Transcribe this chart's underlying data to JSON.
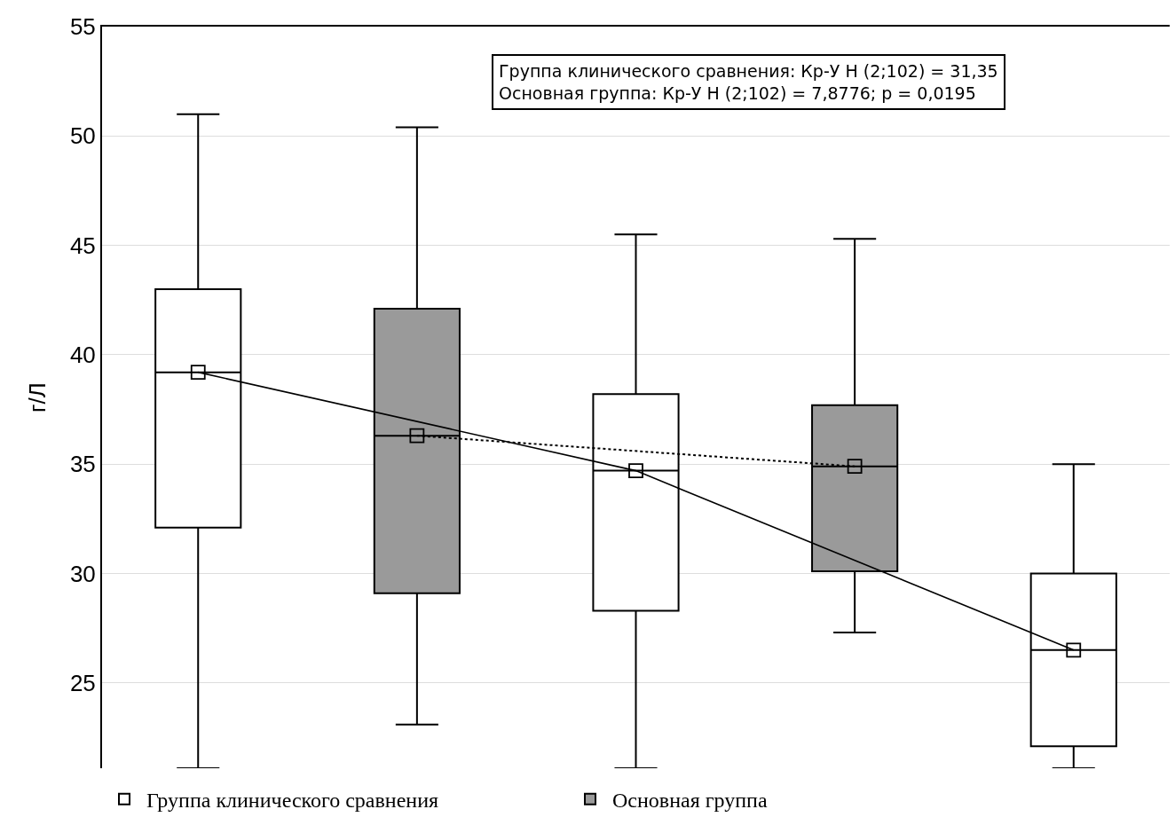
{
  "chart_data": {
    "type": "box",
    "ylabel": "г/Л",
    "annotations": [
      "Группа клинического сравнения: Кр-У H (2;102) = 31,35",
      "Основная группа: Кр-У H (2;102) = 7,8776; p = 0,0195"
    ],
    "categories": [
      null,
      null,
      null,
      null,
      null
    ],
    "series": [
      {
        "name": "Группа клинического сравнения",
        "color": "#ffffff",
        "boxes": [
          {
            "low": 21.1,
            "q1": 32.1,
            "median": 39.2,
            "q3": 43.0,
            "high": 51.0
          },
          null,
          {
            "low": 21.1,
            "q1": 28.3,
            "median": 34.7,
            "q3": 38.2,
            "high": 45.5
          },
          null,
          {
            "low": 21.1,
            "q1": 22.1,
            "median": 26.5,
            "q3": 30.0,
            "high": 35.0
          }
        ]
      },
      {
        "name": "Основная группа",
        "color": "#9a9a9a",
        "boxes": [
          null,
          {
            "low": 23.1,
            "q1": 29.1,
            "median": 36.3,
            "q3": 42.1,
            "high": 50.4
          },
          null,
          {
            "low": 27.3,
            "q1": 30.1,
            "median": 34.9,
            "q3": 37.7,
            "high": 45.3
          },
          null
        ]
      },
      {
        "type": "line",
        "color": "#000000",
        "line_style": "solid",
        "marker": "square",
        "values": [
          39.2,
          null,
          34.7,
          null,
          26.5
        ]
      },
      {
        "type": "line",
        "color": "#000000",
        "line_style": "dotted",
        "marker": "square",
        "values": [
          null,
          36.3,
          null,
          34.9,
          null
        ]
      }
    ],
    "ylim": [
      21.1,
      55
    ],
    "yticks": [
      25,
      30,
      35,
      40,
      45,
      50,
      55
    ],
    "grid": "y",
    "legend": "bottom"
  }
}
